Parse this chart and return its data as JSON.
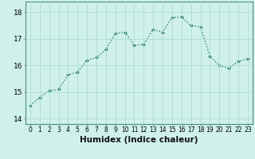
{
  "x": [
    0,
    1,
    2,
    3,
    4,
    5,
    6,
    7,
    8,
    9,
    10,
    11,
    12,
    13,
    14,
    15,
    16,
    17,
    18,
    19,
    20,
    21,
    22,
    23
  ],
  "y": [
    14.5,
    14.8,
    15.05,
    15.1,
    15.65,
    15.75,
    16.2,
    16.3,
    16.6,
    17.2,
    17.25,
    16.75,
    16.8,
    17.35,
    17.25,
    17.8,
    17.82,
    17.5,
    17.45,
    16.35,
    16.0,
    15.9,
    16.15,
    16.25
  ],
  "line_color": "#2d7a6a",
  "marker": "D",
  "marker_size": 1.8,
  "line_width": 1.0,
  "bg_color": "#cff0eb",
  "grid_color": "#aaddd5",
  "xlabel": "Humidex (Indice chaleur)",
  "ylim": [
    13.8,
    18.4
  ],
  "xlim": [
    -0.5,
    23.5
  ],
  "yticks": [
    14,
    15,
    16,
    17,
    18
  ],
  "xticks": [
    0,
    1,
    2,
    3,
    4,
    5,
    6,
    7,
    8,
    9,
    10,
    11,
    12,
    13,
    14,
    15,
    16,
    17,
    18,
    19,
    20,
    21,
    22,
    23
  ],
  "tick_label_fontsize": 5.5,
  "xlabel_fontsize": 7.5,
  "ytick_fontsize": 6.5
}
